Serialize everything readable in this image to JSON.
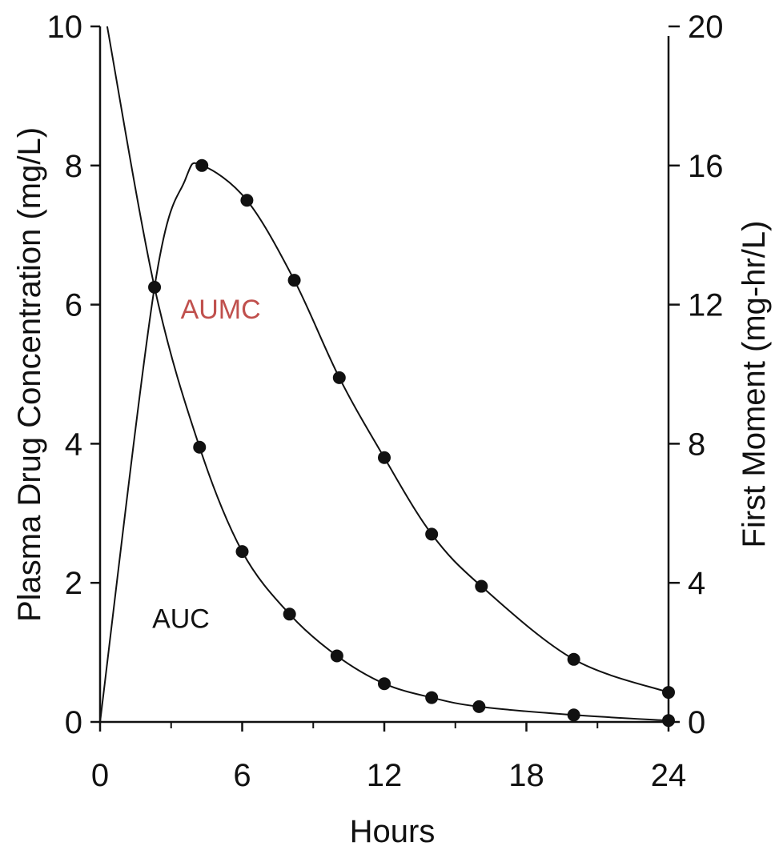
{
  "chart_data": {
    "type": "line",
    "title": "",
    "xlabel": "Hours",
    "ylabel_left": "Plasma Drug Concentration (mg/L)",
    "ylabel_right": "First Moment (mg-hr/L)",
    "xlim": [
      0,
      24
    ],
    "ylim_left": [
      0,
      10
    ],
    "ylim_right": [
      0,
      20
    ],
    "x_ticks": [
      "0",
      "6",
      "12",
      "18",
      "24"
    ],
    "y_left_ticks": [
      "0",
      "2",
      "4",
      "6",
      "8",
      "10"
    ],
    "y_right_ticks": [
      "0",
      "4",
      "8",
      "12",
      "16",
      "20"
    ],
    "grid": false,
    "colors": {
      "ink": "#111111",
      "aumc_label": "#c0504d",
      "auc_label": "#111111"
    },
    "series": [
      {
        "axis": "left",
        "markers": [
          {
            "x": 2.3,
            "y": 6.25
          },
          {
            "x": 4.2,
            "y": 3.95
          },
          {
            "x": 6.0,
            "y": 2.45
          },
          {
            "x": 8.0,
            "y": 1.55
          },
          {
            "x": 10.0,
            "y": 0.95
          },
          {
            "x": 12.0,
            "y": 0.55
          },
          {
            "x": 14.0,
            "y": 0.35
          },
          {
            "x": 16.0,
            "y": 0.22
          },
          {
            "x": 20.0,
            "y": 0.1
          },
          {
            "x": 24.0,
            "y": 0.02
          }
        ],
        "curve": [
          {
            "x": 0.3,
            "y": 10.0
          },
          {
            "x": 2.3,
            "y": 6.25
          },
          {
            "x": 4.2,
            "y": 3.95
          },
          {
            "x": 6.0,
            "y": 2.45
          },
          {
            "x": 8.0,
            "y": 1.55
          },
          {
            "x": 10.0,
            "y": 0.95
          },
          {
            "x": 12.0,
            "y": 0.55
          },
          {
            "x": 14.0,
            "y": 0.35
          },
          {
            "x": 16.0,
            "y": 0.22
          },
          {
            "x": 20.0,
            "y": 0.1
          },
          {
            "x": 24.0,
            "y": 0.02
          }
        ]
      },
      {
        "axis": "right",
        "markers": [
          {
            "x": 4.3,
            "y": 16.0
          },
          {
            "x": 6.2,
            "y": 15.0
          },
          {
            "x": 8.2,
            "y": 12.7
          },
          {
            "x": 10.1,
            "y": 9.9
          },
          {
            "x": 12.0,
            "y": 7.6
          },
          {
            "x": 14.0,
            "y": 5.4
          },
          {
            "x": 16.1,
            "y": 3.9
          },
          {
            "x": 20.0,
            "y": 1.8
          },
          {
            "x": 24.0,
            "y": 0.85
          }
        ],
        "curve": [
          {
            "x": 0.0,
            "y": 0.0
          },
          {
            "x": 2.3,
            "y": 12.5
          },
          {
            "x": 3.6,
            "y": 15.6
          },
          {
            "x": 4.3,
            "y": 16.0
          },
          {
            "x": 6.2,
            "y": 15.0
          },
          {
            "x": 8.2,
            "y": 12.7
          },
          {
            "x": 10.1,
            "y": 9.9
          },
          {
            "x": 12.0,
            "y": 7.6
          },
          {
            "x": 14.0,
            "y": 5.4
          },
          {
            "x": 16.1,
            "y": 3.9
          },
          {
            "x": 20.0,
            "y": 1.8
          },
          {
            "x": 24.0,
            "y": 0.85
          }
        ]
      }
    ],
    "annotations": [
      {
        "text": "AUMC",
        "x": 3.4,
        "y_left": 5.8,
        "color": "aumc_label"
      },
      {
        "text": "AUC",
        "x": 2.2,
        "y_left": 1.35,
        "color": "auc_label"
      }
    ]
  }
}
